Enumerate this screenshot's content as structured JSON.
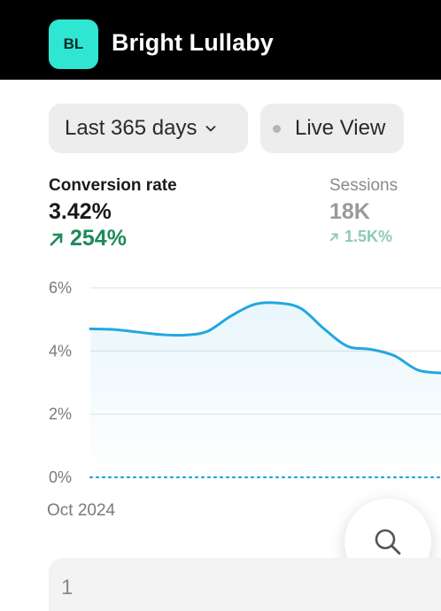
{
  "header": {
    "logo_initials": "BL",
    "store_name": "Bright Lullaby",
    "logo_color": "#2ee6d2"
  },
  "filters": {
    "date_range": "Last 365 days",
    "live_view": "Live View"
  },
  "metrics": [
    {
      "label": "Conversion rate",
      "value": "3.42%",
      "change": "254%",
      "trend": "up"
    },
    {
      "label": "Sessions",
      "value": "18K",
      "change": "1.5K%",
      "trend": "up"
    }
  ],
  "chart_data": {
    "type": "line",
    "y_ticks": [
      "6%",
      "4%",
      "2%",
      "0%"
    ],
    "ylim": [
      0,
      6
    ],
    "x_tick_label": "Oct 2024",
    "series": [
      {
        "values": [
          4.7,
          4.68,
          4.6,
          4.52,
          4.5,
          4.62,
          5.1,
          5.47,
          5.52,
          5.35,
          4.7,
          4.15,
          4.05,
          3.85,
          3.4,
          3.3
        ],
        "color": "#22a7e0"
      },
      {
        "values": [
          0,
          0,
          0,
          0,
          0,
          0,
          0,
          0,
          0,
          0,
          0,
          0,
          0,
          0,
          0,
          0
        ],
        "color": "#22a7e0",
        "style": "dotted"
      }
    ]
  },
  "bottom_card": {
    "rank": "1"
  }
}
